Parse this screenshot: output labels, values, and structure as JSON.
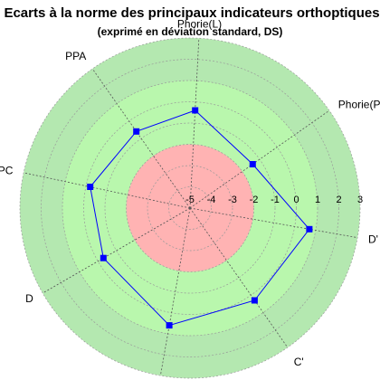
{
  "chart_data": {
    "type": "radar",
    "title": "Ecarts à la norme des principaux indicateurs orthoptiques",
    "subtitle": "(exprimé en déviation standard, DS)",
    "axes": [
      "D'",
      "Phorie(P)",
      "Phorie(L)",
      "PPA",
      "PPC",
      "D",
      "C",
      "C'"
    ],
    "axis_angles_deg": [
      -10,
      35,
      87,
      125,
      168,
      210,
      260,
      305
    ],
    "rlim": [
      -5,
      3
    ],
    "ticks": [
      "-5",
      "-4",
      "-3",
      "-2",
      "-1",
      "0",
      "1",
      "2",
      "3"
    ],
    "series": [
      {
        "values": [
          0.7,
          -1.4,
          -0.4,
          -0.6,
          -0.2,
          -0.3,
          0.6,
          0.3
        ]
      }
    ],
    "bands": [
      {
        "from": -5,
        "to": -2,
        "color": "#ffb3b3"
      },
      {
        "from": -2,
        "to": 1,
        "color": "#b9f7ad"
      },
      {
        "from": 1,
        "to": 3,
        "color": "#b4e8b0"
      }
    ],
    "colors": {
      "series": "#0000ff",
      "grid": "#999999",
      "spoke": "#555555"
    }
  }
}
